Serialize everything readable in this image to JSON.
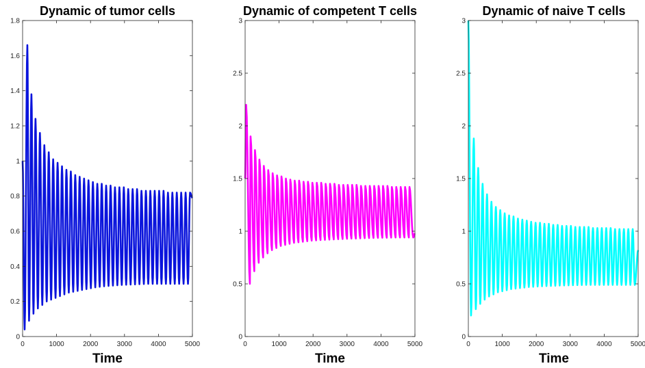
{
  "chart_data": [
    {
      "type": "line",
      "title": "Dynamic of tumor cells",
      "xlabel": "Time",
      "ylabel": "",
      "xlim": [
        0,
        5000
      ],
      "ylim": [
        0,
        1.8
      ],
      "xticks": [
        0,
        1000,
        2000,
        3000,
        4000,
        5000
      ],
      "yticks": [
        0,
        0.2,
        0.4,
        0.6,
        0.8,
        1,
        1.2,
        1.4,
        1.6,
        1.8
      ],
      "xtick_labels": [
        "0",
        "1000",
        "2000",
        "3000",
        "4000",
        "5000"
      ],
      "ytick_labels": [
        "0",
        "0.2",
        "0.4",
        "0.6",
        "0.8",
        "1",
        "1.2",
        "1.4",
        "1.6",
        "1.8"
      ],
      "color": "#0a14dc",
      "grid": false,
      "series": [
        {
          "oscillation_period": 130,
          "initial_value": 1.0,
          "peaks_x": [
            140,
            260,
            380,
            510,
            640,
            770,
            900,
            1030,
            1160,
            1290,
            1420,
            1550,
            1680,
            1810,
            1940,
            2070,
            2200,
            2330,
            2460,
            2590,
            2720,
            2850,
            2980,
            3110,
            3240,
            3370,
            3500,
            3630,
            3760,
            3890,
            4020,
            4150,
            4280,
            4410,
            4540,
            4670,
            4800,
            4930
          ],
          "peaks_y": [
            1.66,
            1.38,
            1.24,
            1.16,
            1.09,
            1.05,
            1.01,
            0.99,
            0.97,
            0.95,
            0.94,
            0.92,
            0.91,
            0.9,
            0.89,
            0.88,
            0.87,
            0.87,
            0.86,
            0.86,
            0.85,
            0.85,
            0.85,
            0.84,
            0.84,
            0.84,
            0.83,
            0.83,
            0.83,
            0.83,
            0.83,
            0.83,
            0.82,
            0.82,
            0.82,
            0.82,
            0.82,
            0.82
          ],
          "troughs_x": [
            60,
            190,
            320,
            450,
            580,
            710,
            840,
            970,
            1100,
            1230,
            1360,
            1490,
            1620,
            1750,
            1880,
            2010,
            2140,
            2270,
            2400,
            2530,
            2660,
            2790,
            2920,
            3050,
            3180,
            3310,
            3440,
            3570,
            3700,
            3830,
            3960,
            4090,
            4220,
            4350,
            4480,
            4610,
            4740,
            4870
          ],
          "troughs_y": [
            0.04,
            0.09,
            0.13,
            0.16,
            0.18,
            0.2,
            0.21,
            0.22,
            0.23,
            0.24,
            0.25,
            0.255,
            0.26,
            0.265,
            0.27,
            0.275,
            0.28,
            0.283,
            0.286,
            0.288,
            0.29,
            0.292,
            0.294,
            0.295,
            0.296,
            0.297,
            0.298,
            0.299,
            0.3,
            0.3,
            0.3,
            0.3,
            0.3,
            0.3,
            0.3,
            0.3,
            0.3,
            0.3
          ],
          "final_value": 0.79
        }
      ]
    },
    {
      "type": "line",
      "title": "Dynamic of competent T cells",
      "xlabel": "Time",
      "ylabel": "",
      "xlim": [
        0,
        5000
      ],
      "ylim": [
        0,
        3
      ],
      "xticks": [
        0,
        1000,
        2000,
        3000,
        4000,
        5000
      ],
      "yticks": [
        0,
        0.5,
        1,
        1.5,
        2,
        2.5,
        3
      ],
      "xtick_labels": [
        "0",
        "1000",
        "2000",
        "3000",
        "4000",
        "5000"
      ],
      "ytick_labels": [
        "0",
        "0.5",
        "1",
        "1.5",
        "2",
        "2.5",
        "3"
      ],
      "color": "#ff00ff",
      "grid": false,
      "series": [
        {
          "oscillation_period": 130,
          "initial_value": 1.5,
          "peaks_x": [
            30,
            160,
            290,
            420,
            550,
            680,
            810,
            940,
            1070,
            1200,
            1330,
            1460,
            1590,
            1720,
            1850,
            1980,
            2110,
            2240,
            2370,
            2500,
            2630,
            2760,
            2890,
            3020,
            3150,
            3280,
            3410,
            3540,
            3670,
            3800,
            3930,
            4060,
            4190,
            4320,
            4450,
            4580,
            4710,
            4840
          ],
          "peaks_y": [
            2.2,
            1.9,
            1.77,
            1.68,
            1.62,
            1.58,
            1.55,
            1.53,
            1.52,
            1.5,
            1.49,
            1.48,
            1.48,
            1.47,
            1.47,
            1.46,
            1.46,
            1.46,
            1.45,
            1.45,
            1.45,
            1.44,
            1.44,
            1.44,
            1.44,
            1.44,
            1.43,
            1.43,
            1.43,
            1.43,
            1.43,
            1.43,
            1.43,
            1.42,
            1.42,
            1.42,
            1.42,
            1.42
          ],
          "troughs_x": [
            140,
            270,
            400,
            530,
            660,
            790,
            920,
            1050,
            1180,
            1310,
            1440,
            1570,
            1700,
            1830,
            1960,
            2090,
            2220,
            2350,
            2480,
            2610,
            2740,
            2870,
            3000,
            3130,
            3260,
            3390,
            3520,
            3650,
            3780,
            3910,
            4040,
            4170,
            4300,
            4430,
            4560,
            4690,
            4820,
            4950
          ],
          "troughs_y": [
            0.5,
            0.62,
            0.7,
            0.75,
            0.79,
            0.82,
            0.84,
            0.86,
            0.87,
            0.88,
            0.89,
            0.895,
            0.9,
            0.905,
            0.91,
            0.913,
            0.916,
            0.918,
            0.92,
            0.922,
            0.924,
            0.926,
            0.928,
            0.93,
            0.93,
            0.932,
            0.934,
            0.935,
            0.936,
            0.937,
            0.938,
            0.938,
            0.939,
            0.94,
            0.94,
            0.94,
            0.94,
            0.94
          ],
          "final_value": 0.98
        }
      ]
    },
    {
      "type": "line",
      "title": "Dynamic of naive T cells",
      "xlabel": "Time",
      "ylabel": "",
      "xlim": [
        0,
        5000
      ],
      "ylim": [
        0,
        3
      ],
      "xticks": [
        0,
        1000,
        2000,
        3000,
        4000,
        5000
      ],
      "yticks": [
        0,
        0.5,
        1,
        1.5,
        2,
        2.5,
        3
      ],
      "xtick_labels": [
        "0",
        "1000",
        "2000",
        "3000",
        "4000",
        "5000"
      ],
      "ytick_labels": [
        "0",
        "0.5",
        "1",
        "1.5",
        "2",
        "2.5",
        "3"
      ],
      "color": "#00ffff",
      "grid": false,
      "series": [
        {
          "oscillation_period": 130,
          "initial_value": 3.0,
          "peaks_x": [
            160,
            290,
            420,
            550,
            680,
            810,
            940,
            1070,
            1200,
            1330,
            1460,
            1590,
            1720,
            1850,
            1980,
            2110,
            2240,
            2370,
            2500,
            2630,
            2760,
            2890,
            3020,
            3150,
            3280,
            3410,
            3540,
            3670,
            3800,
            3930,
            4060,
            4190,
            4320,
            4450,
            4580,
            4710,
            4840
          ],
          "peaks_y": [
            1.88,
            1.6,
            1.45,
            1.35,
            1.28,
            1.23,
            1.2,
            1.17,
            1.15,
            1.14,
            1.12,
            1.11,
            1.1,
            1.09,
            1.08,
            1.08,
            1.07,
            1.07,
            1.06,
            1.06,
            1.05,
            1.05,
            1.05,
            1.04,
            1.04,
            1.04,
            1.04,
            1.03,
            1.03,
            1.03,
            1.03,
            1.03,
            1.02,
            1.02,
            1.02,
            1.02,
            1.02
          ],
          "troughs_x": [
            80,
            220,
            350,
            480,
            610,
            740,
            870,
            1000,
            1130,
            1260,
            1390,
            1520,
            1650,
            1780,
            1910,
            2040,
            2170,
            2300,
            2430,
            2560,
            2690,
            2820,
            2950,
            3080,
            3210,
            3340,
            3470,
            3600,
            3730,
            3860,
            3990,
            4120,
            4250,
            4380,
            4510,
            4640,
            4770,
            4900
          ],
          "troughs_y": [
            0.2,
            0.26,
            0.31,
            0.35,
            0.38,
            0.4,
            0.42,
            0.43,
            0.44,
            0.45,
            0.455,
            0.46,
            0.465,
            0.47,
            0.472,
            0.475,
            0.477,
            0.479,
            0.48,
            0.482,
            0.484,
            0.485,
            0.486,
            0.487,
            0.488,
            0.489,
            0.49,
            0.49,
            0.49,
            0.49,
            0.49,
            0.49,
            0.49,
            0.49,
            0.49,
            0.49,
            0.49,
            0.49
          ],
          "final_value": 0.82
        }
      ]
    }
  ]
}
